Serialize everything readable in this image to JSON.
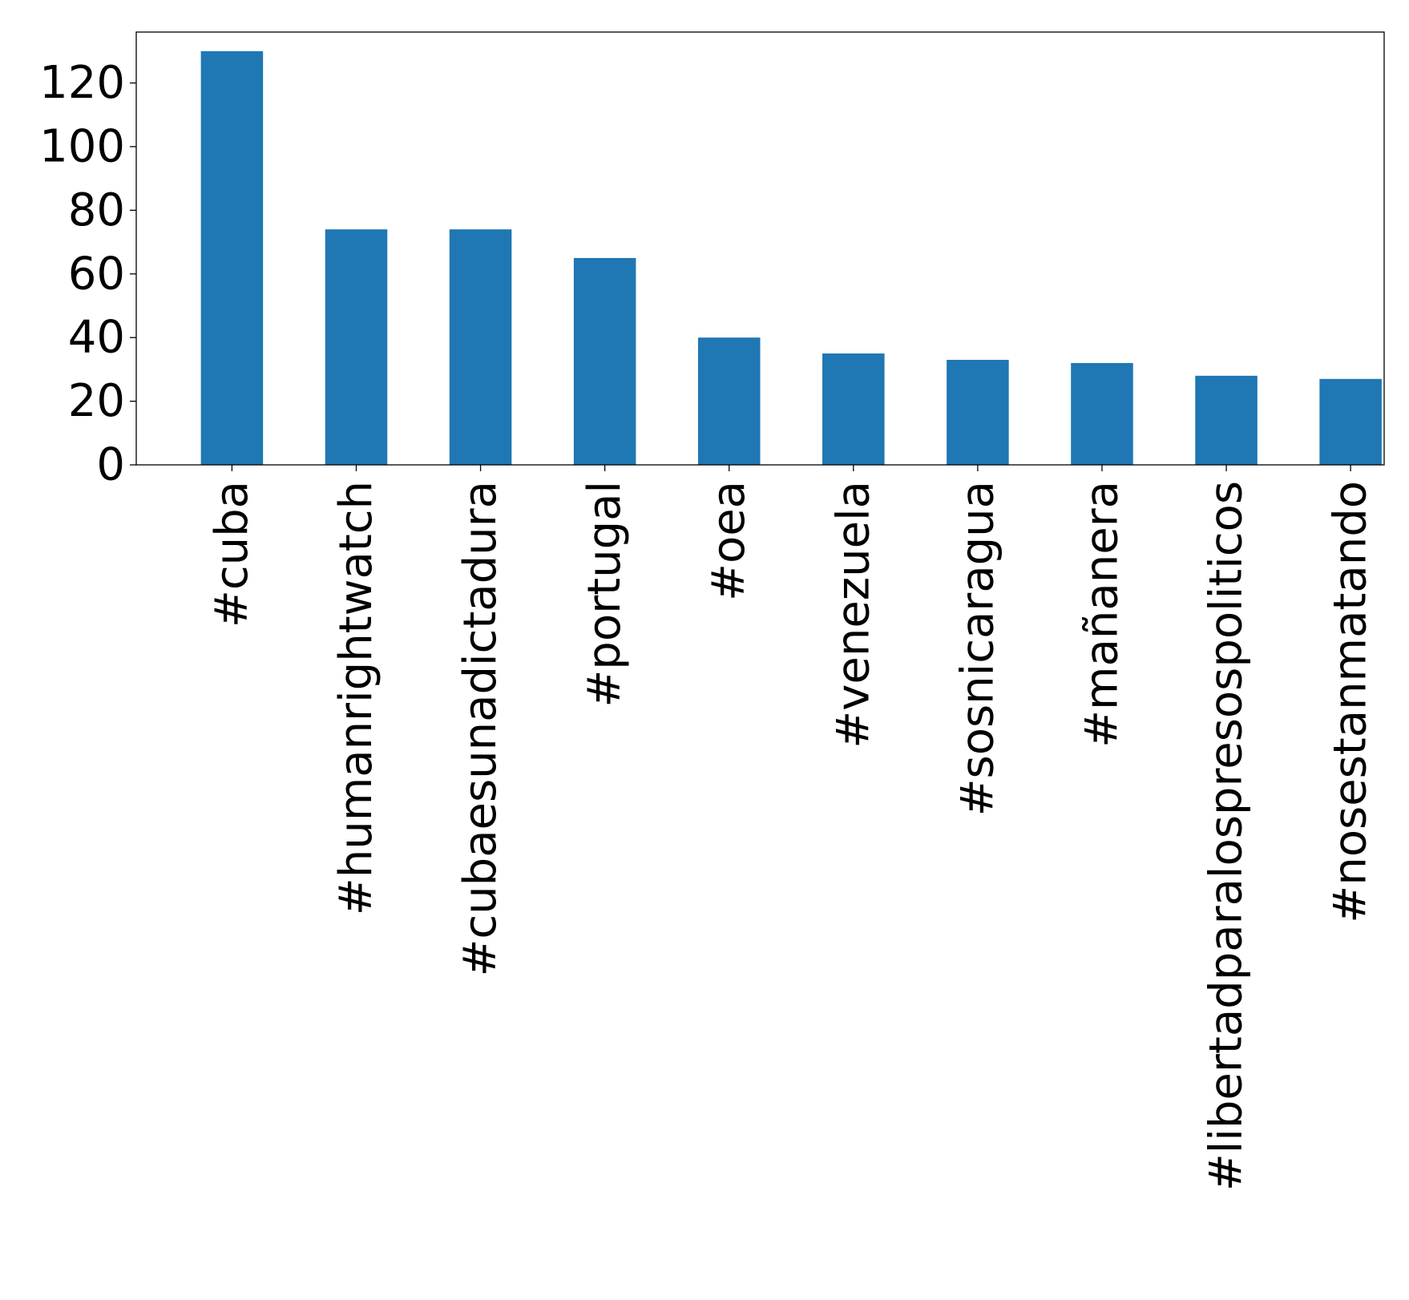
{
  "chart_data": {
    "type": "bar",
    "title": "",
    "xlabel": "",
    "ylabel": "",
    "categories": [
      "#cuba",
      "#humanrightwatch",
      "#cubaesunadictadura",
      "#portugal",
      "#oea",
      "#venezuela",
      "#sosnicaragua",
      "#mañanera",
      "#libertadparalospresospoliticos",
      "#nosestanmatando"
    ],
    "values": [
      130,
      74,
      74,
      65,
      40,
      35,
      33,
      32,
      28,
      27
    ],
    "ylim": [
      0,
      136
    ],
    "yticks": [
      0,
      20,
      40,
      60,
      80,
      100,
      120
    ],
    "bar_color": "#1f77b4",
    "grid": false,
    "legend": "none"
  }
}
